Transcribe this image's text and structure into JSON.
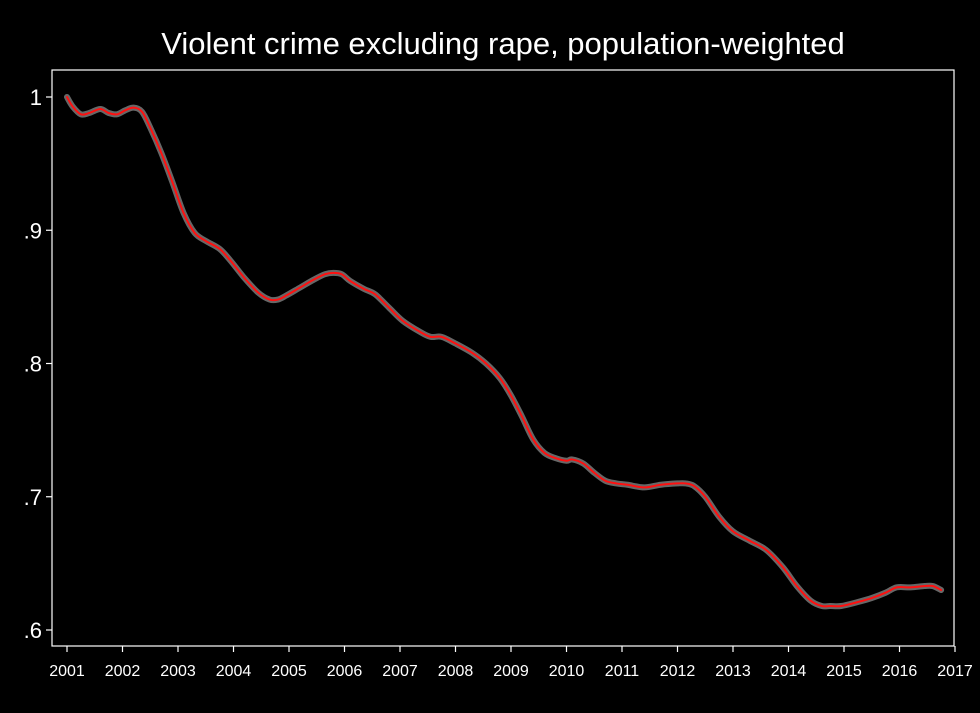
{
  "chart_data": {
    "type": "line",
    "title": "Violent crime excluding rape, population-weighted",
    "xlabel": "",
    "ylabel": "",
    "xlim": [
      2001,
      2017
    ],
    "ylim": [
      0.6,
      1.0
    ],
    "x_ticks": [
      2001,
      2002,
      2003,
      2004,
      2005,
      2006,
      2007,
      2008,
      2009,
      2010,
      2011,
      2012,
      2013,
      2014,
      2015,
      2016,
      2017
    ],
    "x_tick_labels": [
      "2001",
      "2002",
      "2003",
      "2004",
      "2005",
      "2006",
      "2007",
      "2008",
      "2009",
      "2010",
      "2011",
      "2012",
      "2013",
      "2014",
      "2015",
      "2016",
      "2017"
    ],
    "y_ticks": [
      1.0,
      0.9,
      0.8,
      0.7,
      0.6
    ],
    "y_tick_labels": [
      "1",
      ".9",
      ".8",
      ".7",
      ".6"
    ],
    "grid": false,
    "legend": "none",
    "background_color": "#000000",
    "axis_color": "#ffffff",
    "series": [
      {
        "color": "#ff1010",
        "halo_color": "#bbbbbb",
        "x": [
          2001.0,
          2001.1,
          2001.25,
          2001.4,
          2001.6,
          2001.75,
          2001.9,
          2002.05,
          2002.2,
          2002.35,
          2002.5,
          2002.7,
          2002.9,
          2003.1,
          2003.3,
          2003.5,
          2003.75,
          2003.95,
          2004.2,
          2004.45,
          2004.65,
          2004.8,
          2004.95,
          2005.2,
          2005.45,
          2005.65,
          2005.8,
          2005.95,
          2006.1,
          2006.35,
          2006.55,
          2006.8,
          2007.05,
          2007.35,
          2007.55,
          2007.75,
          2008.0,
          2008.3,
          2008.55,
          2008.8,
          2009.0,
          2009.2,
          2009.4,
          2009.6,
          2009.8,
          2010.0,
          2010.1,
          2010.3,
          2010.5,
          2010.7,
          2010.9,
          2011.1,
          2011.4,
          2011.7,
          2012.0,
          2012.15,
          2012.3,
          2012.5,
          2012.75,
          2013.0,
          2013.3,
          2013.6,
          2013.9,
          2014.15,
          2014.4,
          2014.6,
          2014.75,
          2014.95,
          2015.25,
          2015.5,
          2015.75,
          2015.95,
          2016.2,
          2016.45,
          2016.6,
          2016.75
        ],
        "values": [
          1.0,
          0.993,
          0.987,
          0.988,
          0.991,
          0.988,
          0.987,
          0.99,
          0.992,
          0.989,
          0.977,
          0.958,
          0.936,
          0.913,
          0.898,
          0.892,
          0.886,
          0.877,
          0.864,
          0.853,
          0.848,
          0.848,
          0.851,
          0.857,
          0.863,
          0.867,
          0.868,
          0.867,
          0.862,
          0.856,
          0.852,
          0.842,
          0.832,
          0.824,
          0.82,
          0.82,
          0.815,
          0.808,
          0.8,
          0.789,
          0.776,
          0.76,
          0.743,
          0.733,
          0.729,
          0.727,
          0.728,
          0.725,
          0.718,
          0.712,
          0.71,
          0.709,
          0.707,
          0.709,
          0.71,
          0.71,
          0.708,
          0.7,
          0.685,
          0.674,
          0.667,
          0.66,
          0.647,
          0.633,
          0.622,
          0.618,
          0.618,
          0.618,
          0.621,
          0.624,
          0.628,
          0.632,
          0.632,
          0.633,
          0.633,
          0.63
        ]
      }
    ]
  }
}
